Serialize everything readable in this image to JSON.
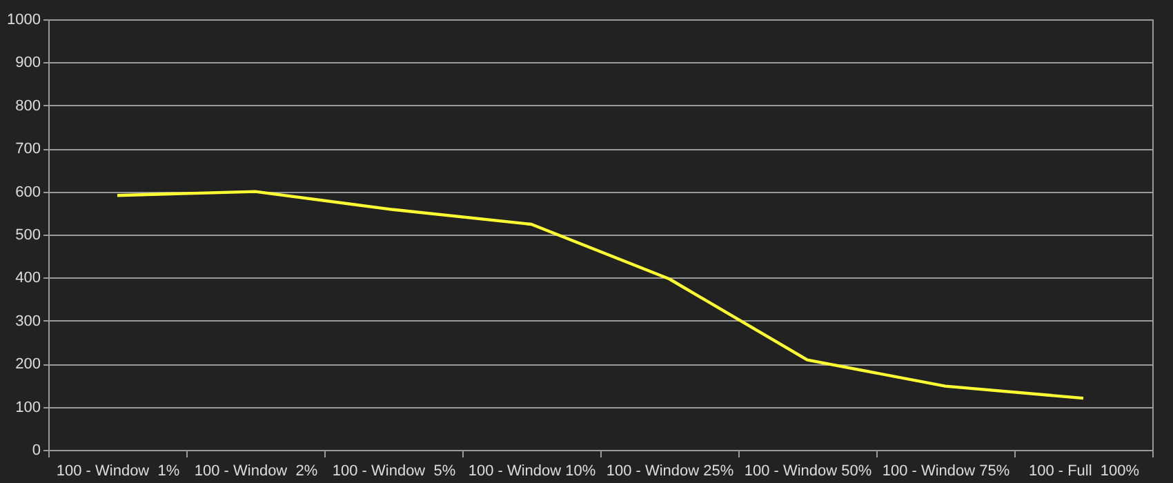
{
  "chart_data": {
    "type": "line",
    "categories": [
      "100 - Window  1%",
      "100 - Window  2%",
      "100 - Window  5%",
      "100 - Window 10%",
      "100 - Window 25%",
      "100 - Window 50%",
      "100 - Window 75%",
      "100 - Full  100%"
    ],
    "series": [
      {
        "color": "#ffff33",
        "values": [
          591,
          600,
          558,
          524,
          397,
          209,
          148,
          120
        ]
      }
    ],
    "ylim": [
      0,
      1000
    ],
    "yticks": [
      0,
      100,
      200,
      300,
      400,
      500,
      600,
      700,
      800,
      900,
      1000
    ],
    "grid": "y",
    "legend": false,
    "marker": "none",
    "line_style": "solid"
  }
}
